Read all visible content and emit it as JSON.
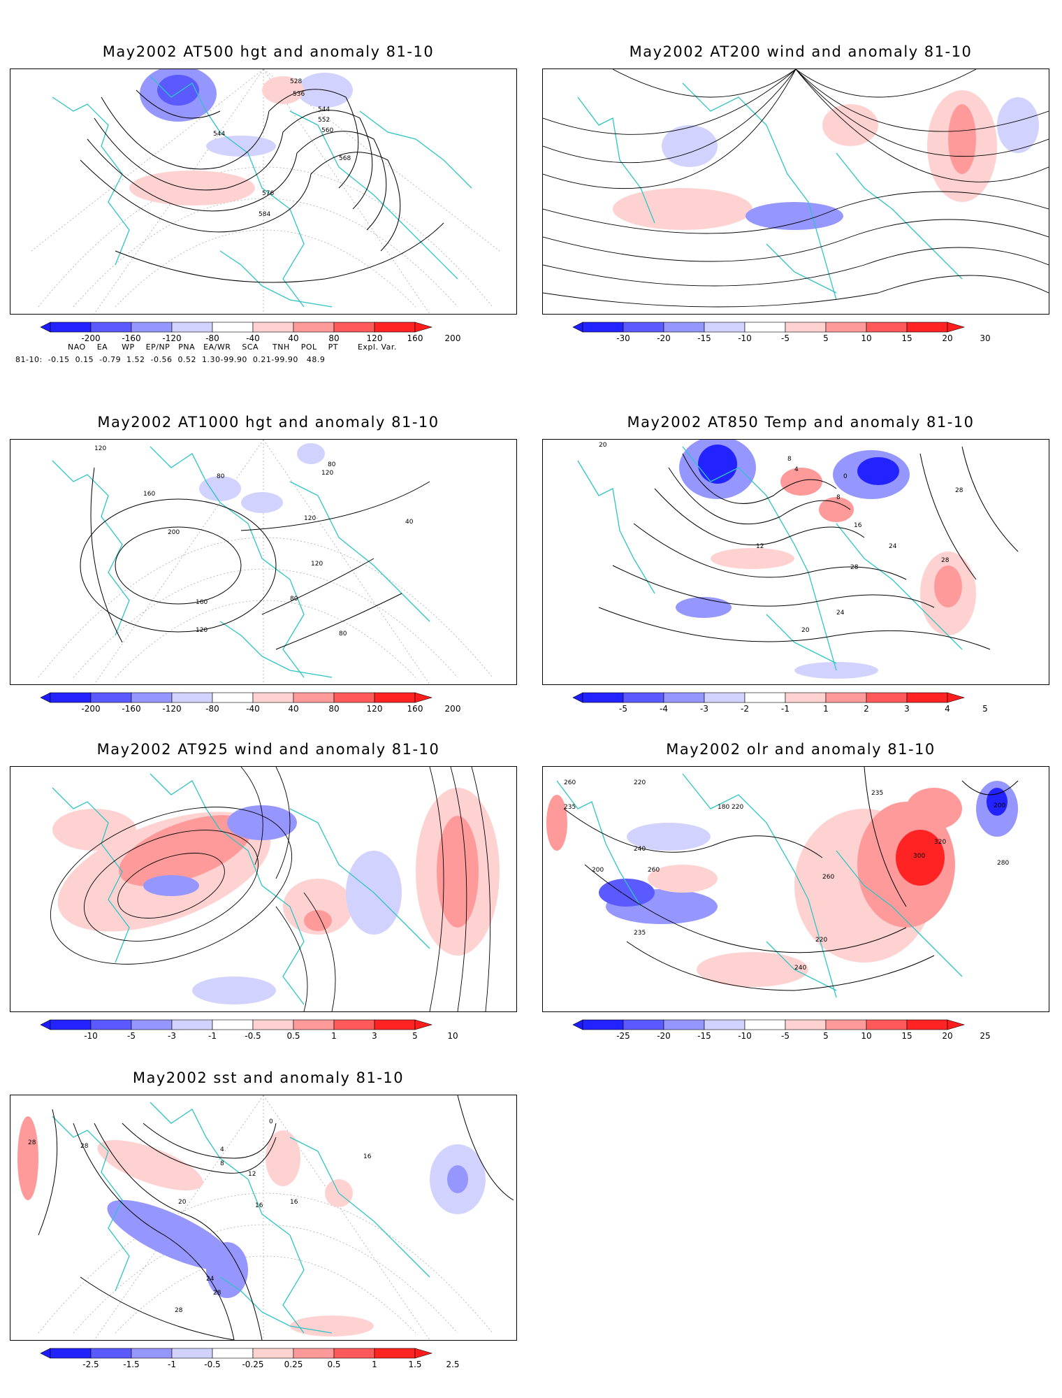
{
  "colors": {
    "deep_blue": "#2323ff",
    "blue": "#5a5aff",
    "mid_blue": "#9696ff",
    "light_blue": "#d2d2ff",
    "light_red": "#ffd2d2",
    "mid_red": "#ff9a9a",
    "red": "#ff5a5a",
    "deep_red": "#ff2323",
    "coast": "#2ec4c4",
    "contour": "#000000",
    "grid": "#aaaaaa"
  },
  "panels": [
    {
      "title": "May2002 AT500 hgt and anomaly 81-10",
      "colorbar": {
        "labels": [
          "-200",
          "-160",
          "-120",
          "-80",
          "-40",
          "40",
          "80",
          "120",
          "160",
          "200"
        ]
      },
      "contour_labels": [
        "528",
        "536",
        "544",
        "552",
        "560",
        "568",
        "576",
        "584",
        "544"
      ]
    },
    {
      "title": "May2002 AT200 wind and anomaly 81-10",
      "colorbar": {
        "labels": [
          "-30",
          "-20",
          "-15",
          "-10",
          "-5",
          "5",
          "10",
          "15",
          "20",
          "30"
        ]
      },
      "contour_labels": []
    },
    {
      "title": "May2002 AT1000 hgt and anomaly 81-10",
      "colorbar": {
        "labels": [
          "-200",
          "-160",
          "-120",
          "-80",
          "-40",
          "40",
          "80",
          "120",
          "160",
          "200"
        ]
      },
      "contour_labels": [
        "120",
        "160",
        "200",
        "160",
        "120",
        "80",
        "120",
        "120",
        "80",
        "40",
        "80",
        "80",
        "120"
      ]
    },
    {
      "title": "May2002 AT850 Temp and anomaly 81-10",
      "colorbar": {
        "labels": [
          "-5",
          "-4",
          "-3",
          "-2",
          "-1",
          "1",
          "2",
          "3",
          "4",
          "5"
        ]
      },
      "contour_labels": [
        "20",
        "8",
        "4",
        "0",
        "8",
        "28",
        "12",
        "16",
        "24",
        "28",
        "28",
        "24",
        "20"
      ]
    },
    {
      "title": "May2002 AT925 wind and anomaly 81-10",
      "colorbar": {
        "labels": [
          "-10",
          "-5",
          "-3",
          "-1",
          "-0.5",
          "0.5",
          "1",
          "3",
          "5",
          "10"
        ]
      },
      "contour_labels": []
    },
    {
      "title": "May2002 olr and anomaly 81-10",
      "colorbar": {
        "labels": [
          "-25",
          "-20",
          "-15",
          "-10",
          "-5",
          "5",
          "10",
          "15",
          "20",
          "25"
        ]
      },
      "contour_labels": [
        "260",
        "220",
        "235",
        "200",
        "240",
        "260",
        "220",
        "180",
        "235",
        "300",
        "320",
        "280",
        "260",
        "240",
        "220",
        "235",
        "200"
      ]
    },
    {
      "title": "May2002 sst and anomaly 81-10",
      "colorbar": {
        "labels": [
          "-2.5",
          "-1.5",
          "-1",
          "-0.5",
          "-0.25",
          "0.25",
          "0.5",
          "1",
          "1.5",
          "2.5"
        ]
      },
      "contour_labels": [
        "28",
        "28",
        "20",
        "16",
        "12",
        "8",
        "4",
        "0",
        "16",
        "24",
        "28",
        "28",
        "16"
      ]
    }
  ],
  "teleconnection_indices": {
    "header": "NAO    EA     WP    EP/NP   PNA   EA/WR    SCA     TNH    POL    PT       Expl. Var.",
    "row": "81-10:  -0.15  0.15  -0.79  1.52  -0.56  0.52  1.30-99.90  0.21-99.90   48.9"
  }
}
